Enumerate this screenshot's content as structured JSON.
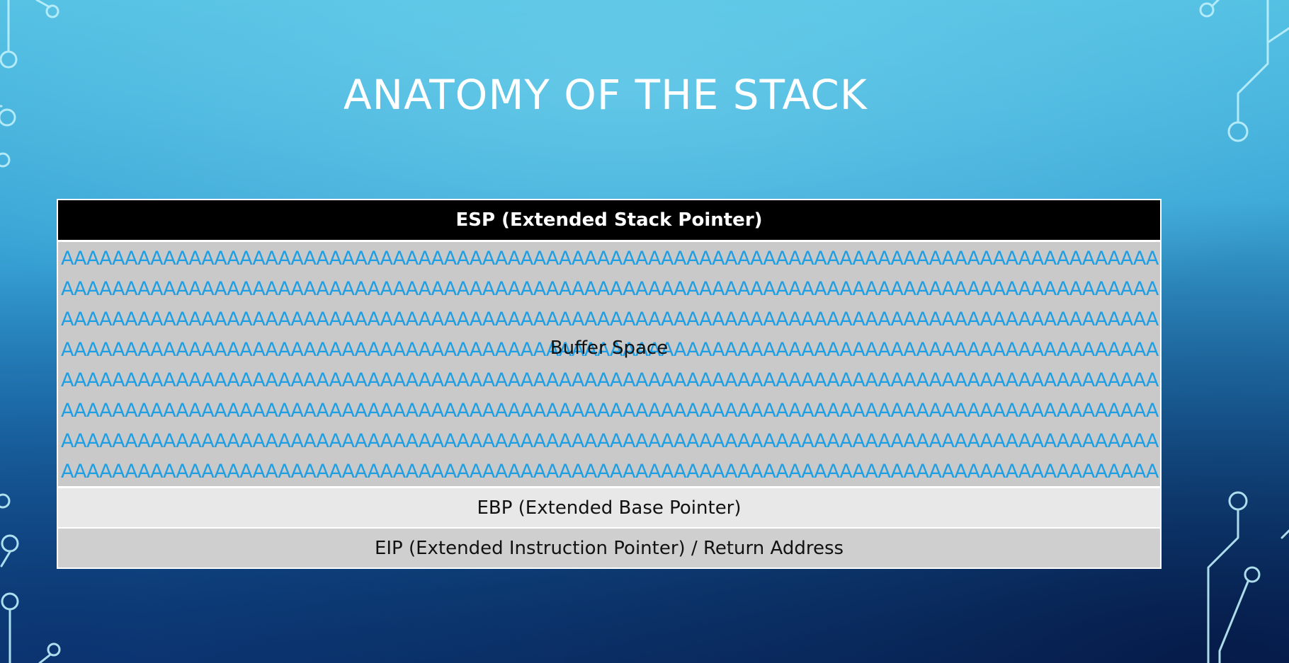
{
  "slide": {
    "title": "ANATOMY OF THE STACK"
  },
  "stack": {
    "esp_label": "ESP (Extended Stack Pointer)",
    "buffer_label": "Buffer Space",
    "buffer_fill": "AAAAAAAAAAAAAAAAAAAAAAAAAAAAAAAAAAAAAAAAAAAAAAAAAAAAAAAAAAAAAAAAAAAAAAAAAAAAAAAAAAAAAA",
    "buffer_fill_rows": 8,
    "ebp_label": "EBP (Extended Base Pointer)",
    "eip_label": "EIP (Extended Instruction Pointer) / Return Address"
  },
  "colors": {
    "buffer_fill_color": "#1e9fe4",
    "esp_background": "#000000",
    "buffer_background": "#c9c9c9",
    "ebp_background": "#e8e8e8",
    "eip_background": "#cfcfcf"
  },
  "icons": {
    "decoration": "circuit-trace-icon"
  }
}
